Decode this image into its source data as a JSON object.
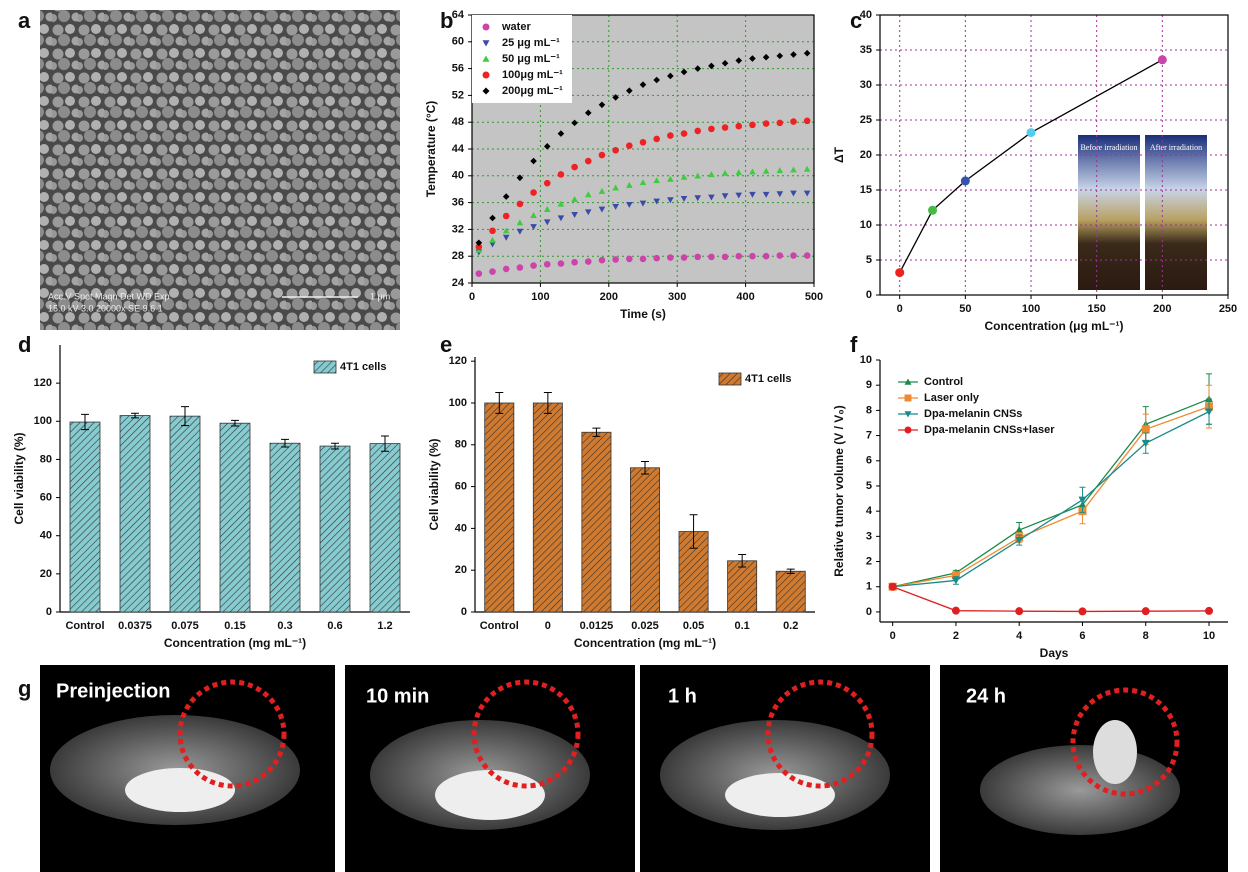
{
  "panel_labels": [
    "a",
    "b",
    "c",
    "d",
    "e",
    "f",
    "g"
  ],
  "sem_image": {
    "info_lines": [
      "Acc.V  Spot Magn    Det  WD  Exp",
      "15.0 kV 3.0  20000x   SE   9.6   1"
    ],
    "scale_bar": "1 μm"
  },
  "chart_data": [
    {
      "type": "scatter",
      "xlabel": "Time (s)",
      "ylabel": "Temperature (°C)",
      "x": [
        10,
        30,
        50,
        70,
        90,
        110,
        130,
        150,
        170,
        190,
        210,
        230,
        250,
        270,
        290,
        310,
        330,
        350,
        370,
        390,
        410,
        430,
        450,
        470,
        490
      ],
      "series": [
        {
          "name": "water",
          "color": "#cc44aa",
          "marker": "circle",
          "values": [
            25.4,
            25.7,
            26.1,
            26.3,
            26.6,
            26.8,
            26.9,
            27.1,
            27.2,
            27.4,
            27.5,
            27.6,
            27.6,
            27.7,
            27.8,
            27.8,
            27.9,
            27.9,
            27.9,
            28.0,
            28.0,
            28.0,
            28.1,
            28.1,
            28.1
          ]
        },
        {
          "name": "25 μg mL⁻¹",
          "color": "#3a4aa8",
          "marker": "triangle-down",
          "values": [
            28.6,
            29.8,
            30.8,
            31.7,
            32.4,
            33.1,
            33.7,
            34.2,
            34.6,
            35.0,
            35.4,
            35.7,
            35.9,
            36.2,
            36.4,
            36.6,
            36.7,
            36.8,
            37.0,
            37.1,
            37.2,
            37.2,
            37.3,
            37.4,
            37.4
          ]
        },
        {
          "name": "50 μg mL⁻¹",
          "color": "#3ecc3e",
          "marker": "triangle-up",
          "values": [
            28.9,
            30.4,
            31.8,
            33.0,
            34.1,
            35.0,
            35.8,
            36.5,
            37.2,
            37.7,
            38.2,
            38.6,
            39.0,
            39.3,
            39.5,
            39.8,
            40.0,
            40.2,
            40.4,
            40.5,
            40.6,
            40.7,
            40.8,
            40.9,
            41.0
          ]
        },
        {
          "name": "100μg mL⁻¹",
          "color": "#ee2222",
          "marker": "circle",
          "values": [
            29.4,
            31.8,
            34.0,
            35.8,
            37.5,
            38.9,
            40.2,
            41.3,
            42.2,
            43.1,
            43.8,
            44.5,
            45.0,
            45.5,
            46.0,
            46.3,
            46.7,
            47.0,
            47.2,
            47.4,
            47.6,
            47.8,
            47.9,
            48.1,
            48.2
          ]
        },
        {
          "name": "200μg mL⁻¹",
          "color": "#000000",
          "marker": "diamond",
          "values": [
            30.0,
            33.7,
            36.9,
            39.7,
            42.2,
            44.4,
            46.3,
            47.9,
            49.4,
            50.6,
            51.7,
            52.7,
            53.6,
            54.3,
            54.9,
            55.5,
            56.0,
            56.4,
            56.8,
            57.2,
            57.5,
            57.7,
            57.9,
            58.1,
            58.3
          ]
        }
      ],
      "xlim": [
        0,
        500
      ],
      "xticks": [
        0,
        100,
        200,
        300,
        400,
        500
      ],
      "ylim": [
        24,
        64
      ],
      "yticks": [
        24,
        28,
        32,
        36,
        40,
        44,
        48,
        52,
        56,
        60,
        64
      ],
      "grid": true,
      "grid_color": "#2f9a2f",
      "background": "#c4c4c4",
      "legend": "upper left"
    },
    {
      "type": "line",
      "xlabel": "Concentration (μg mL⁻¹)",
      "ylabel": "ΔT",
      "x": [
        0,
        25,
        50,
        100,
        200
      ],
      "values": [
        3.2,
        12.1,
        16.3,
        23.2,
        33.6
      ],
      "color": "#000000",
      "point_colors": [
        "#ee2222",
        "#44bb44",
        "#3355aa",
        "#55ccee",
        "#cc44aa"
      ],
      "xlim": [
        -15,
        250
      ],
      "xticks": [
        0,
        50,
        100,
        150,
        200,
        250
      ],
      "ylim": [
        0,
        40
      ],
      "yticks": [
        0,
        5,
        10,
        15,
        20,
        25,
        30,
        35,
        40
      ],
      "grid": true,
      "grid_color": "#a0309a",
      "inset_labels": [
        "Before irradiation",
        "After irradiation"
      ]
    },
    {
      "type": "bar",
      "xlabel": "Concentration (mg mL⁻¹)",
      "ylabel": "Cell viability (%)",
      "categories": [
        "Control",
        "0.0375",
        "0.075",
        "0.15",
        "0.3",
        "0.6",
        "1.2"
      ],
      "series": [
        {
          "name": "4T1 cells",
          "color": "#86cbd0",
          "values": [
            99.6,
            103,
            102.7,
            99,
            88.5,
            87,
            88.3
          ],
          "errors": [
            4,
            1.2,
            5,
            1.5,
            2,
            1.5,
            4
          ]
        }
      ],
      "ylim": [
        0,
        140
      ],
      "yticks": [
        0,
        20,
        40,
        60,
        80,
        100,
        120
      ],
      "legend": "upper right"
    },
    {
      "type": "bar",
      "xlabel": "Concentration (mg mL⁻¹)",
      "ylabel": "Cell viability (%)",
      "categories": [
        "Control",
        "0",
        "0.0125",
        "0.025",
        "0.05",
        "0.1",
        "0.2"
      ],
      "series": [
        {
          "name": "4T1 cells",
          "color": "#d07a30",
          "values": [
            100,
            100,
            86,
            69,
            38.5,
            24.5,
            19.5
          ],
          "errors": [
            5,
            5,
            2,
            3,
            8,
            3,
            1
          ]
        }
      ],
      "ylim": [
        0,
        122
      ],
      "yticks": [
        0,
        20,
        40,
        60,
        80,
        100,
        120
      ],
      "legend": "upper right"
    },
    {
      "type": "line",
      "xlabel": "Days",
      "ylabel": "Relative tumor volume (V / V₀)",
      "x": [
        0,
        2,
        4,
        6,
        8,
        10
      ],
      "series": [
        {
          "name": "Control",
          "color": "#1a8a4a",
          "marker": "triangle-up",
          "values": [
            1,
            1.55,
            3.25,
            4.25,
            7.45,
            8.45
          ],
          "errors": [
            0,
            0.1,
            0.3,
            0.25,
            0.7,
            1.0
          ]
        },
        {
          "name": "Laser only",
          "color": "#f08a30",
          "marker": "square",
          "values": [
            1,
            1.45,
            2.95,
            4.0,
            7.25,
            8.15
          ],
          "errors": [
            0,
            0.1,
            0.2,
            0.5,
            0.6,
            0.85
          ]
        },
        {
          "name": "Dpa-melanin CNSs",
          "color": "#1a8a8a",
          "marker": "triangle-down",
          "values": [
            1,
            1.25,
            2.85,
            4.45,
            6.7,
            7.95
          ],
          "errors": [
            0,
            0.15,
            0.2,
            0.5,
            0.4,
            0.5
          ]
        },
        {
          "name": "Dpa-melanin CNSs+laser",
          "color": "#e02020",
          "marker": "circle",
          "values": [
            1,
            0.05,
            0.03,
            0.02,
            0.03,
            0.04
          ]
        }
      ],
      "xlim": [
        -0.4,
        10.6
      ],
      "xticks": [
        0,
        2,
        4,
        6,
        8,
        10
      ],
      "ylim": [
        -0.4,
        10
      ],
      "yticks": [
        0,
        1,
        2,
        3,
        4,
        5,
        6,
        7,
        8,
        9,
        10
      ],
      "legend": "upper left"
    }
  ],
  "mri_labels": [
    "Preinjection",
    "10 min",
    "1 h",
    "24 h"
  ]
}
